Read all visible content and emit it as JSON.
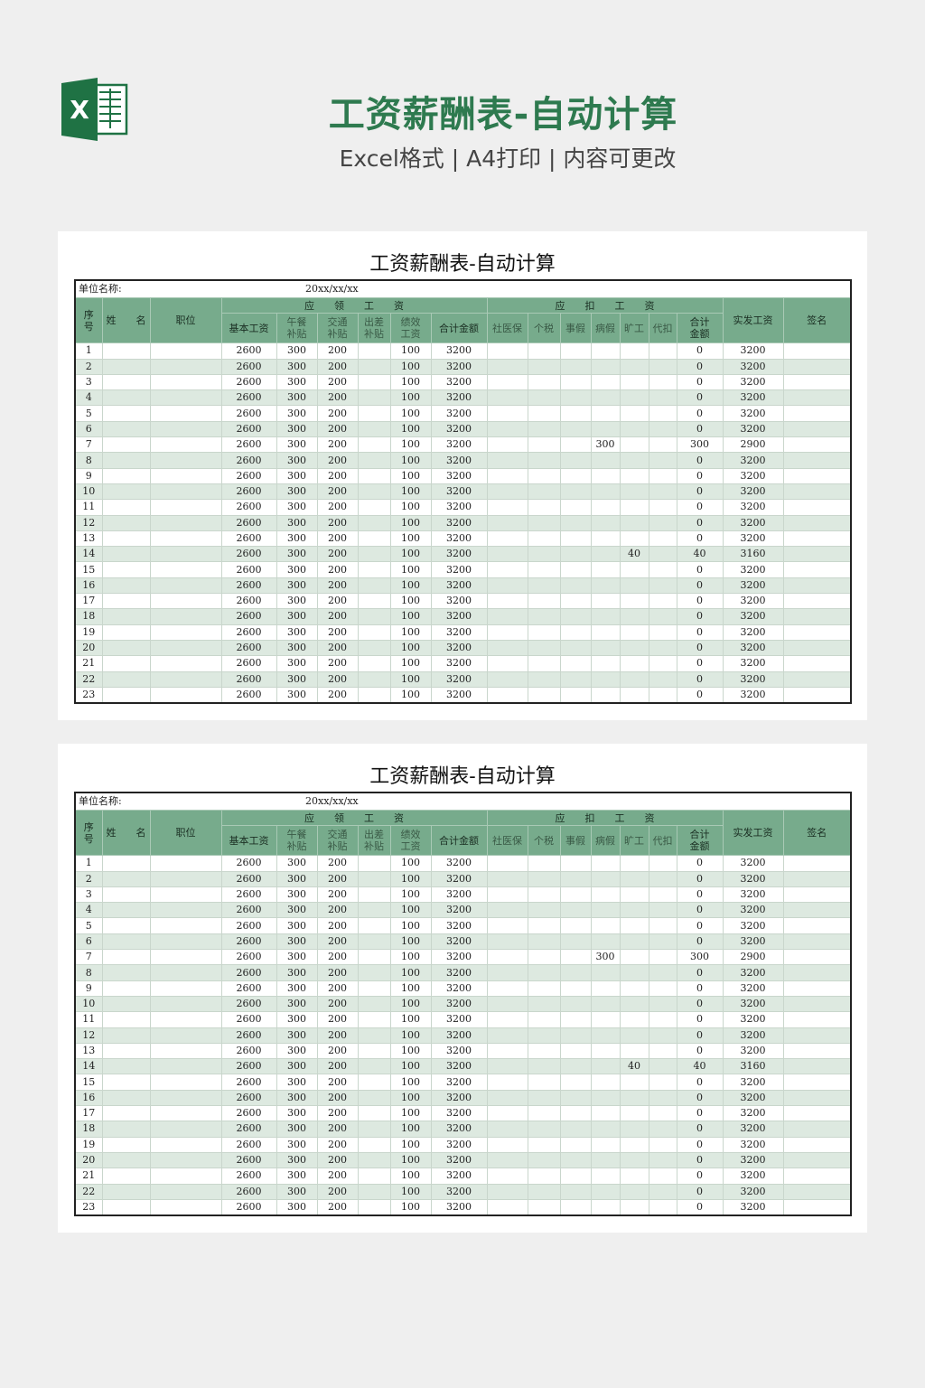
{
  "header": {
    "title": "工资薪酬表-自动计算",
    "subtitle": "Excel格式 | A4打印 | 内容可更改",
    "logo_letter": "X",
    "brand_color": "#1f7244"
  },
  "sheet": {
    "title": "工资薪酬表-自动计算",
    "unit_label": "单位名称:",
    "date": "20xx/xx/xx",
    "group_earn": "应　　领　　工　　资",
    "group_deduct": "应　　扣　　工　　资",
    "headers": {
      "no": "序\n号",
      "name": "姓　　名",
      "position": "职位",
      "base": "基本工资",
      "meal": "午餐\n补贴",
      "transport": "交通\n补贴",
      "travel": "出差\n补贴",
      "perf": "绩效\n工资",
      "earn_total": "合计金额",
      "insurance": "社医保",
      "tax": "个税",
      "personal_leave": "事假",
      "sick_leave": "病假",
      "absence": "旷工",
      "withhold": "代扣",
      "deduct_total": "合计\n金额",
      "net": "实发工资",
      "sign": "签名"
    },
    "rows": [
      [
        "1",
        "",
        "",
        "2600",
        "300",
        "200",
        "",
        "100",
        "3200",
        "",
        "",
        "",
        "",
        "",
        "",
        "0",
        "3200",
        ""
      ],
      [
        "2",
        "",
        "",
        "2600",
        "300",
        "200",
        "",
        "100",
        "3200",
        "",
        "",
        "",
        "",
        "",
        "",
        "0",
        "3200",
        ""
      ],
      [
        "3",
        "",
        "",
        "2600",
        "300",
        "200",
        "",
        "100",
        "3200",
        "",
        "",
        "",
        "",
        "",
        "",
        "0",
        "3200",
        ""
      ],
      [
        "4",
        "",
        "",
        "2600",
        "300",
        "200",
        "",
        "100",
        "3200",
        "",
        "",
        "",
        "",
        "",
        "",
        "0",
        "3200",
        ""
      ],
      [
        "5",
        "",
        "",
        "2600",
        "300",
        "200",
        "",
        "100",
        "3200",
        "",
        "",
        "",
        "",
        "",
        "",
        "0",
        "3200",
        ""
      ],
      [
        "6",
        "",
        "",
        "2600",
        "300",
        "200",
        "",
        "100",
        "3200",
        "",
        "",
        "",
        "",
        "",
        "",
        "0",
        "3200",
        ""
      ],
      [
        "7",
        "",
        "",
        "2600",
        "300",
        "200",
        "",
        "100",
        "3200",
        "",
        "",
        "",
        "300",
        "",
        "",
        "300",
        "2900",
        ""
      ],
      [
        "8",
        "",
        "",
        "2600",
        "300",
        "200",
        "",
        "100",
        "3200",
        "",
        "",
        "",
        "",
        "",
        "",
        "0",
        "3200",
        ""
      ],
      [
        "9",
        "",
        "",
        "2600",
        "300",
        "200",
        "",
        "100",
        "3200",
        "",
        "",
        "",
        "",
        "",
        "",
        "0",
        "3200",
        ""
      ],
      [
        "10",
        "",
        "",
        "2600",
        "300",
        "200",
        "",
        "100",
        "3200",
        "",
        "",
        "",
        "",
        "",
        "",
        "0",
        "3200",
        ""
      ],
      [
        "11",
        "",
        "",
        "2600",
        "300",
        "200",
        "",
        "100",
        "3200",
        "",
        "",
        "",
        "",
        "",
        "",
        "0",
        "3200",
        ""
      ],
      [
        "12",
        "",
        "",
        "2600",
        "300",
        "200",
        "",
        "100",
        "3200",
        "",
        "",
        "",
        "",
        "",
        "",
        "0",
        "3200",
        ""
      ],
      [
        "13",
        "",
        "",
        "2600",
        "300",
        "200",
        "",
        "100",
        "3200",
        "",
        "",
        "",
        "",
        "",
        "",
        "0",
        "3200",
        ""
      ],
      [
        "14",
        "",
        "",
        "2600",
        "300",
        "200",
        "",
        "100",
        "3200",
        "",
        "",
        "",
        "",
        "40",
        "",
        "40",
        "3160",
        ""
      ],
      [
        "15",
        "",
        "",
        "2600",
        "300",
        "200",
        "",
        "100",
        "3200",
        "",
        "",
        "",
        "",
        "",
        "",
        "0",
        "3200",
        ""
      ],
      [
        "16",
        "",
        "",
        "2600",
        "300",
        "200",
        "",
        "100",
        "3200",
        "",
        "",
        "",
        "",
        "",
        "",
        "0",
        "3200",
        ""
      ],
      [
        "17",
        "",
        "",
        "2600",
        "300",
        "200",
        "",
        "100",
        "3200",
        "",
        "",
        "",
        "",
        "",
        "",
        "0",
        "3200",
        ""
      ],
      [
        "18",
        "",
        "",
        "2600",
        "300",
        "200",
        "",
        "100",
        "3200",
        "",
        "",
        "",
        "",
        "",
        "",
        "0",
        "3200",
        ""
      ],
      [
        "19",
        "",
        "",
        "2600",
        "300",
        "200",
        "",
        "100",
        "3200",
        "",
        "",
        "",
        "",
        "",
        "",
        "0",
        "3200",
        ""
      ],
      [
        "20",
        "",
        "",
        "2600",
        "300",
        "200",
        "",
        "100",
        "3200",
        "",
        "",
        "",
        "",
        "",
        "",
        "0",
        "3200",
        ""
      ],
      [
        "21",
        "",
        "",
        "2600",
        "300",
        "200",
        "",
        "100",
        "3200",
        "",
        "",
        "",
        "",
        "",
        "",
        "0",
        "3200",
        ""
      ],
      [
        "22",
        "",
        "",
        "2600",
        "300",
        "200",
        "",
        "100",
        "3200",
        "",
        "",
        "",
        "",
        "",
        "",
        "0",
        "3200",
        ""
      ],
      [
        "23",
        "",
        "",
        "2600",
        "300",
        "200",
        "",
        "100",
        "3200",
        "",
        "",
        "",
        "",
        "",
        "",
        "0",
        "3200",
        ""
      ]
    ]
  },
  "colors": {
    "header_green": "#77ab8c",
    "alt_row": "#dde9e0",
    "title_green": "#2e7a4f"
  }
}
